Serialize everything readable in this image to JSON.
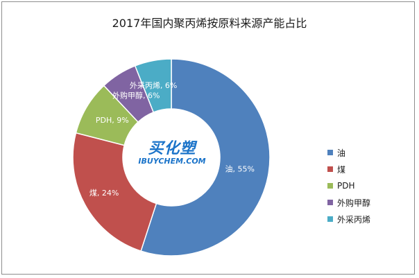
{
  "chart_data": {
    "type": "pie",
    "title": "2017年国内聚丙烯按原料来源产能占比",
    "donut": true,
    "categories": [
      "油",
      "煤",
      "PDH",
      "外购甲醇",
      "外采丙烯"
    ],
    "values": [
      55,
      24,
      9,
      6,
      6
    ],
    "value_unit": "%",
    "colors": [
      "#4f81bd",
      "#c0504d",
      "#9bbb59",
      "#8064a2",
      "#4bacc6"
    ],
    "legend_position": "right",
    "slice_labels": [
      "油, 55%",
      "煤, 24%",
      "PDH, 9%",
      "外购甲醇, 6%",
      "外采丙烯, 6%"
    ]
  },
  "logo": {
    "text_cn": "买化塑",
    "text_en": "IBUYCHEM.COM"
  }
}
